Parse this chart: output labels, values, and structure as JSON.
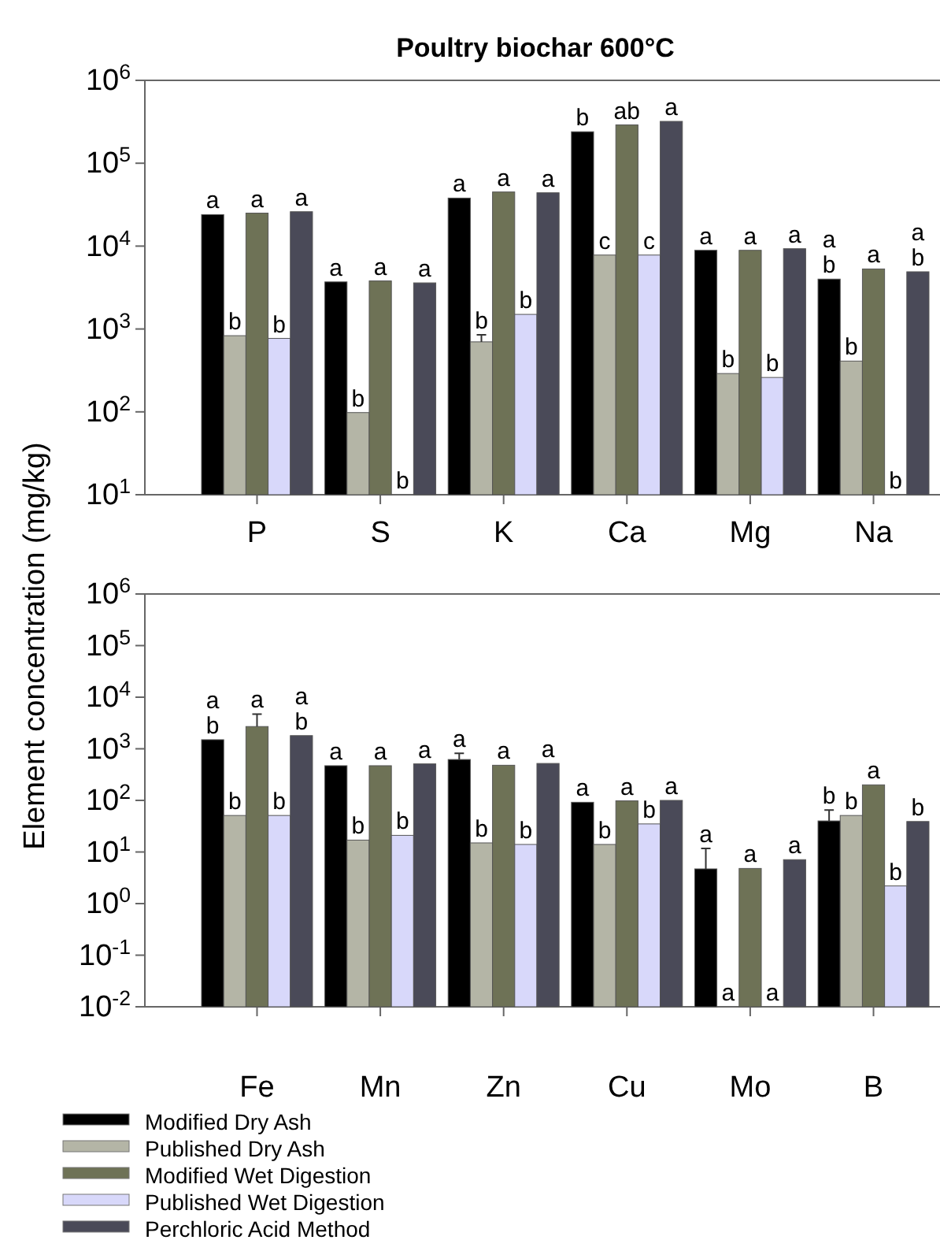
{
  "chart_data": [
    {
      "type": "bar",
      "title": "Poultry biochar 600°C",
      "ylabel": "Element concentration (mg/kg)",
      "log": true,
      "categories": [
        "P",
        "S",
        "K",
        "Ca",
        "Mg",
        "Na"
      ],
      "ylim": [
        10,
        1000000
      ],
      "yticks": [
        {
          "value": 10,
          "label": "10$^{1}$"
        },
        {
          "value": 100,
          "label": "10$^{2}$"
        },
        {
          "value": 1000,
          "label": "10$^{3}$"
        },
        {
          "value": 10000,
          "label": "10$^{4}$"
        },
        {
          "value": 100000,
          "label": "10$^{5}$"
        },
        {
          "value": 1000000,
          "label": "10$^{6}$"
        }
      ],
      "series": [
        {
          "color": "#000000",
          "values": [
            24000,
            3700,
            38000,
            240000,
            8900,
            4000
          ],
          "value_labels": [
            "a",
            "a",
            "a",
            "b",
            "a",
            "a\nb"
          ]
        },
        {
          "color": "#b4b5a6",
          "values": [
            830,
            98,
            700,
            7800,
            290,
            410
          ],
          "errors": [
            null,
            null,
            150,
            null,
            null,
            null
          ],
          "value_labels": [
            "b",
            "b",
            "b",
            "c",
            "b",
            "b"
          ]
        },
        {
          "color": "#6e7256",
          "values": [
            25000,
            3800,
            45000,
            290000,
            8900,
            5300
          ],
          "value_labels": [
            "a",
            "a",
            "a",
            "ab",
            "a",
            "a"
          ]
        },
        {
          "color": "#d8d8fa",
          "values": [
            770,
            null,
            1500,
            7800,
            260,
            null
          ],
          "value_labels": [
            "b",
            "b",
            "b",
            "c",
            "b",
            "b"
          ]
        },
        {
          "color": "#4a4a58",
          "values": [
            26000,
            3600,
            44000,
            320000,
            9300,
            4900
          ],
          "value_labels": [
            "a",
            "a",
            "a",
            "a",
            "a",
            "a\nb"
          ]
        }
      ]
    },
    {
      "type": "bar",
      "log": true,
      "legend": "bottom",
      "categories": [
        "Fe",
        "Mn",
        "Zn",
        "Cu",
        "Mo",
        "B"
      ],
      "ylim": [
        0.01,
        1000000
      ],
      "yticks": [
        {
          "value": 0.01,
          "label": "10$^{-2}$"
        },
        {
          "value": 0.1,
          "label": "10$^{-1}$"
        },
        {
          "value": 1,
          "label": "10$^{0}$"
        },
        {
          "value": 10,
          "label": "10$^{1}$"
        },
        {
          "value": 100,
          "label": "10$^{2}$"
        },
        {
          "value": 1000,
          "label": "10$^{3}$"
        },
        {
          "value": 10000,
          "label": "10$^{4}$"
        },
        {
          "value": 100000,
          "label": "10$^{5}$"
        },
        {
          "value": 1000000,
          "label": "10$^{6}$"
        }
      ],
      "series": [
        {
          "name": "Modified Dry Ash",
          "color": "#000000",
          "values": [
            1500,
            470,
            620,
            92,
            4.7,
            40
          ],
          "errors": [
            null,
            null,
            200,
            null,
            7,
            25
          ],
          "value_labels": [
            "a\nb",
            "a",
            "a",
            "a",
            "a",
            "b"
          ]
        },
        {
          "name": "Published Dry Ash",
          "color": "#b4b5a6",
          "values": [
            51,
            17,
            15,
            14,
            null,
            51
          ],
          "value_labels": [
            "b",
            "b",
            "b",
            "b",
            "a",
            "b"
          ]
        },
        {
          "name": "Modified Wet Digestion",
          "color": "#6e7256",
          "values": [
            2700,
            470,
            480,
            98,
            4.8,
            200
          ],
          "errors": [
            2000,
            null,
            null,
            null,
            null,
            null
          ],
          "value_labels": [
            "a",
            "a",
            "a",
            "a",
            "a",
            "a"
          ]
        },
        {
          "name": "Published Wet Digestion",
          "color": "#d8d8fa",
          "values": [
            51,
            21,
            14,
            35,
            null,
            2.2
          ],
          "value_labels": [
            "b",
            "b",
            "b",
            "b",
            "a",
            "b"
          ]
        },
        {
          "name": "Perchloric Acid Method",
          "color": "#4a4a58",
          "values": [
            1800,
            510,
            520,
            100,
            7.1,
            39
          ],
          "value_labels": [
            "a\nb",
            "a",
            "a",
            "a",
            "a",
            "b"
          ]
        }
      ]
    }
  ]
}
